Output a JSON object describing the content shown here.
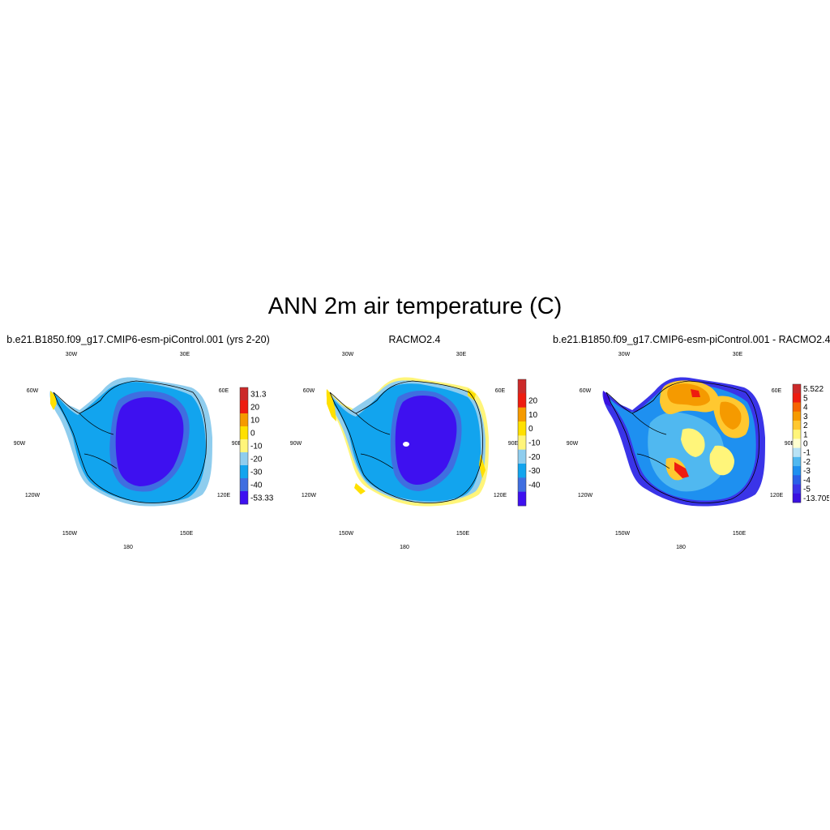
{
  "title": "ANN 2m air temperature (C)",
  "lon_labels": [
    "30W",
    "30E",
    "60W",
    "60E",
    "90W",
    "90E",
    "120W",
    "120E",
    "150W",
    "150E",
    "180"
  ],
  "panels": [
    {
      "title": "b.e21.B1850.f09_g17.CMIP6-esm-piControl.001 (yrs 2-20)",
      "colorbar": {
        "labels": [
          "31.3",
          "20",
          "10",
          "0",
          "-10",
          "-20",
          "-30",
          "-40",
          "-53.33"
        ],
        "colors": [
          "#cc2a2a",
          "#ee1c10",
          "#f59a00",
          "#ffe000",
          "#fff57a",
          "#8fcdee",
          "#12a4ee",
          "#3f6ee0",
          "#3e10f0"
        ]
      }
    },
    {
      "title": "RACMO2.4",
      "colorbar": {
        "labels": [
          "20",
          "10",
          "0",
          "-10",
          "-20",
          "-30",
          "-40"
        ],
        "colors": [
          "#cc2a2a",
          "#ee1c10",
          "#f59a00",
          "#ffe000",
          "#fff57a",
          "#8fcdee",
          "#12a4ee",
          "#3f6ee0",
          "#3e10f0"
        ]
      }
    },
    {
      "title": "b.e21.B1850.f09_g17.CMIP6-esm-piControl.001 - RACMO2.4",
      "colorbar": {
        "labels": [
          "5.522",
          "5",
          "4",
          "3",
          "2",
          "1",
          "0",
          "-1",
          "-2",
          "-3",
          "-4",
          "-5",
          "-13.705"
        ],
        "colors": [
          "#cc2a2a",
          "#ee1c10",
          "#f56400",
          "#f59a00",
          "#ffc830",
          "#fff57a",
          "#ffffd0",
          "#b8e2f5",
          "#50b8f0",
          "#1e90f0",
          "#2a60e8",
          "#3a34e8",
          "#3a10e0"
        ]
      }
    }
  ]
}
